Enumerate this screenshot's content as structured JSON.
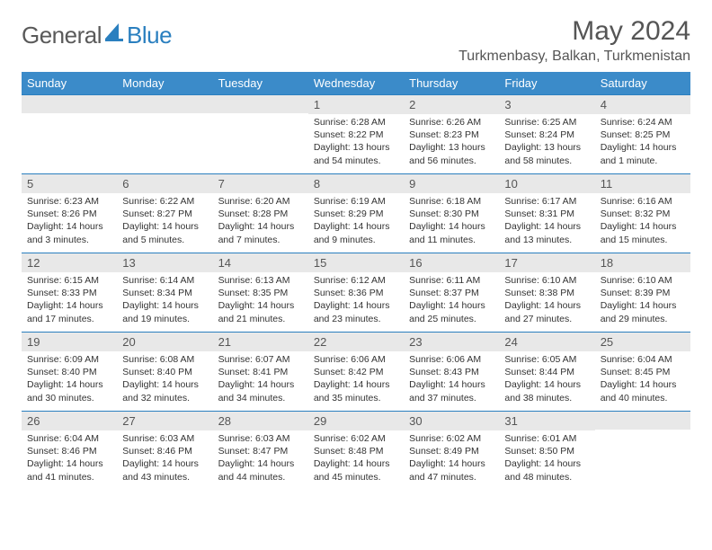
{
  "brand": {
    "part1": "General",
    "part2": "Blue"
  },
  "title": "May 2024",
  "location": "Turkmenbasy, Balkan, Turkmenistan",
  "colors": {
    "header_bg": "#3b8bc9",
    "header_fg": "#ffffff",
    "daynum_bg": "#e8e8e8",
    "border": "#2a7fbf",
    "brand_gray": "#5a5a5a",
    "brand_blue": "#2a7fbf"
  },
  "weekdays": [
    "Sunday",
    "Monday",
    "Tuesday",
    "Wednesday",
    "Thursday",
    "Friday",
    "Saturday"
  ],
  "weeks": [
    [
      {
        "n": "",
        "lines": []
      },
      {
        "n": "",
        "lines": []
      },
      {
        "n": "",
        "lines": []
      },
      {
        "n": "1",
        "lines": [
          "Sunrise: 6:28 AM",
          "Sunset: 8:22 PM",
          "Daylight: 13 hours and 54 minutes."
        ]
      },
      {
        "n": "2",
        "lines": [
          "Sunrise: 6:26 AM",
          "Sunset: 8:23 PM",
          "Daylight: 13 hours and 56 minutes."
        ]
      },
      {
        "n": "3",
        "lines": [
          "Sunrise: 6:25 AM",
          "Sunset: 8:24 PM",
          "Daylight: 13 hours and 58 minutes."
        ]
      },
      {
        "n": "4",
        "lines": [
          "Sunrise: 6:24 AM",
          "Sunset: 8:25 PM",
          "Daylight: 14 hours and 1 minute."
        ]
      }
    ],
    [
      {
        "n": "5",
        "lines": [
          "Sunrise: 6:23 AM",
          "Sunset: 8:26 PM",
          "Daylight: 14 hours and 3 minutes."
        ]
      },
      {
        "n": "6",
        "lines": [
          "Sunrise: 6:22 AM",
          "Sunset: 8:27 PM",
          "Daylight: 14 hours and 5 minutes."
        ]
      },
      {
        "n": "7",
        "lines": [
          "Sunrise: 6:20 AM",
          "Sunset: 8:28 PM",
          "Daylight: 14 hours and 7 minutes."
        ]
      },
      {
        "n": "8",
        "lines": [
          "Sunrise: 6:19 AM",
          "Sunset: 8:29 PM",
          "Daylight: 14 hours and 9 minutes."
        ]
      },
      {
        "n": "9",
        "lines": [
          "Sunrise: 6:18 AM",
          "Sunset: 8:30 PM",
          "Daylight: 14 hours and 11 minutes."
        ]
      },
      {
        "n": "10",
        "lines": [
          "Sunrise: 6:17 AM",
          "Sunset: 8:31 PM",
          "Daylight: 14 hours and 13 minutes."
        ]
      },
      {
        "n": "11",
        "lines": [
          "Sunrise: 6:16 AM",
          "Sunset: 8:32 PM",
          "Daylight: 14 hours and 15 minutes."
        ]
      }
    ],
    [
      {
        "n": "12",
        "lines": [
          "Sunrise: 6:15 AM",
          "Sunset: 8:33 PM",
          "Daylight: 14 hours and 17 minutes."
        ]
      },
      {
        "n": "13",
        "lines": [
          "Sunrise: 6:14 AM",
          "Sunset: 8:34 PM",
          "Daylight: 14 hours and 19 minutes."
        ]
      },
      {
        "n": "14",
        "lines": [
          "Sunrise: 6:13 AM",
          "Sunset: 8:35 PM",
          "Daylight: 14 hours and 21 minutes."
        ]
      },
      {
        "n": "15",
        "lines": [
          "Sunrise: 6:12 AM",
          "Sunset: 8:36 PM",
          "Daylight: 14 hours and 23 minutes."
        ]
      },
      {
        "n": "16",
        "lines": [
          "Sunrise: 6:11 AM",
          "Sunset: 8:37 PM",
          "Daylight: 14 hours and 25 minutes."
        ]
      },
      {
        "n": "17",
        "lines": [
          "Sunrise: 6:10 AM",
          "Sunset: 8:38 PM",
          "Daylight: 14 hours and 27 minutes."
        ]
      },
      {
        "n": "18",
        "lines": [
          "Sunrise: 6:10 AM",
          "Sunset: 8:39 PM",
          "Daylight: 14 hours and 29 minutes."
        ]
      }
    ],
    [
      {
        "n": "19",
        "lines": [
          "Sunrise: 6:09 AM",
          "Sunset: 8:40 PM",
          "Daylight: 14 hours and 30 minutes."
        ]
      },
      {
        "n": "20",
        "lines": [
          "Sunrise: 6:08 AM",
          "Sunset: 8:40 PM",
          "Daylight: 14 hours and 32 minutes."
        ]
      },
      {
        "n": "21",
        "lines": [
          "Sunrise: 6:07 AM",
          "Sunset: 8:41 PM",
          "Daylight: 14 hours and 34 minutes."
        ]
      },
      {
        "n": "22",
        "lines": [
          "Sunrise: 6:06 AM",
          "Sunset: 8:42 PM",
          "Daylight: 14 hours and 35 minutes."
        ]
      },
      {
        "n": "23",
        "lines": [
          "Sunrise: 6:06 AM",
          "Sunset: 8:43 PM",
          "Daylight: 14 hours and 37 minutes."
        ]
      },
      {
        "n": "24",
        "lines": [
          "Sunrise: 6:05 AM",
          "Sunset: 8:44 PM",
          "Daylight: 14 hours and 38 minutes."
        ]
      },
      {
        "n": "25",
        "lines": [
          "Sunrise: 6:04 AM",
          "Sunset: 8:45 PM",
          "Daylight: 14 hours and 40 minutes."
        ]
      }
    ],
    [
      {
        "n": "26",
        "lines": [
          "Sunrise: 6:04 AM",
          "Sunset: 8:46 PM",
          "Daylight: 14 hours and 41 minutes."
        ]
      },
      {
        "n": "27",
        "lines": [
          "Sunrise: 6:03 AM",
          "Sunset: 8:46 PM",
          "Daylight: 14 hours and 43 minutes."
        ]
      },
      {
        "n": "28",
        "lines": [
          "Sunrise: 6:03 AM",
          "Sunset: 8:47 PM",
          "Daylight: 14 hours and 44 minutes."
        ]
      },
      {
        "n": "29",
        "lines": [
          "Sunrise: 6:02 AM",
          "Sunset: 8:48 PM",
          "Daylight: 14 hours and 45 minutes."
        ]
      },
      {
        "n": "30",
        "lines": [
          "Sunrise: 6:02 AM",
          "Sunset: 8:49 PM",
          "Daylight: 14 hours and 47 minutes."
        ]
      },
      {
        "n": "31",
        "lines": [
          "Sunrise: 6:01 AM",
          "Sunset: 8:50 PM",
          "Daylight: 14 hours and 48 minutes."
        ]
      },
      {
        "n": "",
        "lines": []
      }
    ]
  ]
}
